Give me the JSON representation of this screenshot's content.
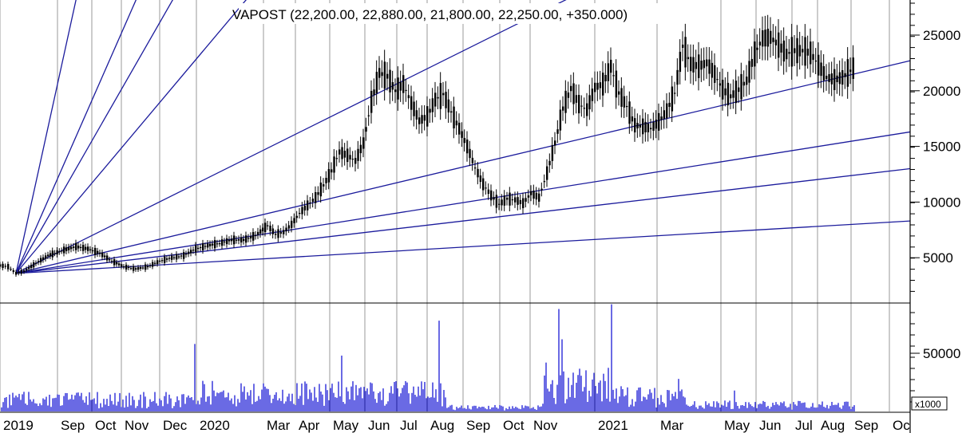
{
  "chart_data": {
    "type": "line",
    "title": "VAPOST (22,200.00, 22,880.00, 21,800.00, 22,250.00, +350.000)",
    "price_axis": {
      "ylim": [
        0,
        28000
      ],
      "ticks": [
        5000,
        10000,
        15000,
        20000,
        25000
      ]
    },
    "volume_axis": {
      "ylim": [
        0,
        90000
      ],
      "ticks": [
        50000
      ],
      "multiplier_label": "x1000"
    },
    "x_labels": [
      "2019",
      "Sep",
      "Oct",
      "Nov",
      "Dec",
      "2020",
      "Mar",
      "Apr",
      "May",
      "Jun",
      "Jul",
      "Aug",
      "Sep",
      "Oct",
      "Nov",
      "2021",
      "Mar",
      "May",
      "Jun",
      "Jul",
      "Aug",
      "Sep",
      "Oc"
    ],
    "grid": "vertical-months",
    "price_series": {
      "name": "",
      "points": [
        [
          0,
          4300
        ],
        [
          10,
          4200
        ],
        [
          20,
          3600
        ],
        [
          30,
          3800
        ],
        [
          45,
          4500
        ],
        [
          60,
          5200
        ],
        [
          80,
          5700
        ],
        [
          95,
          6000
        ],
        [
          110,
          5800
        ],
        [
          125,
          5400
        ],
        [
          140,
          4700
        ],
        [
          155,
          4200
        ],
        [
          170,
          4000
        ],
        [
          185,
          4200
        ],
        [
          200,
          4700
        ],
        [
          215,
          5000
        ],
        [
          230,
          5200
        ],
        [
          245,
          5800
        ],
        [
          260,
          6100
        ],
        [
          275,
          6300
        ],
        [
          290,
          6600
        ],
        [
          305,
          6600
        ],
        [
          320,
          7000
        ],
        [
          335,
          7900
        ],
        [
          345,
          7100
        ],
        [
          355,
          7300
        ],
        [
          365,
          8000
        ],
        [
          375,
          9000
        ],
        [
          385,
          9700
        ],
        [
          395,
          10400
        ],
        [
          405,
          11500
        ],
        [
          415,
          12800
        ],
        [
          425,
          14500
        ],
        [
          435,
          14200
        ],
        [
          445,
          13700
        ],
        [
          455,
          15300
        ],
        [
          465,
          19000
        ],
        [
          475,
          21600
        ],
        [
          485,
          21300
        ],
        [
          495,
          20000
        ],
        [
          505,
          20600
        ],
        [
          515,
          18900
        ],
        [
          525,
          17300
        ],
        [
          535,
          17700
        ],
        [
          545,
          19200
        ],
        [
          555,
          19700
        ],
        [
          565,
          18100
        ],
        [
          575,
          16600
        ],
        [
          585,
          15000
        ],
        [
          595,
          13100
        ],
        [
          605,
          11600
        ],
        [
          615,
          10600
        ],
        [
          625,
          9800
        ],
        [
          635,
          10300
        ],
        [
          645,
          10200
        ],
        [
          655,
          9900
        ],
        [
          665,
          10800
        ],
        [
          675,
          10400
        ],
        [
          685,
          12600
        ],
        [
          695,
          15300
        ],
        [
          705,
          18400
        ],
        [
          715,
          20200
        ],
        [
          725,
          18800
        ],
        [
          735,
          18300
        ],
        [
          745,
          20300
        ],
        [
          755,
          20600
        ],
        [
          765,
          22200
        ],
        [
          775,
          19800
        ],
        [
          785,
          18600
        ],
        [
          795,
          16900
        ],
        [
          805,
          16800
        ],
        [
          815,
          16600
        ],
        [
          825,
          17200
        ],
        [
          835,
          18200
        ],
        [
          845,
          19800
        ],
        [
          855,
          24000
        ],
        [
          865,
          22400
        ],
        [
          875,
          22200
        ],
        [
          885,
          22500
        ],
        [
          895,
          21500
        ],
        [
          905,
          20100
        ],
        [
          915,
          19500
        ],
        [
          925,
          20100
        ],
        [
          935,
          20900
        ],
        [
          945,
          23300
        ],
        [
          955,
          24700
        ],
        [
          965,
          24800
        ],
        [
          975,
          24100
        ],
        [
          985,
          23300
        ],
        [
          995,
          23600
        ],
        [
          1005,
          23600
        ],
        [
          1015,
          23400
        ],
        [
          1025,
          22300
        ],
        [
          1035,
          21200
        ],
        [
          1045,
          21000
        ],
        [
          1055,
          21200
        ],
        [
          1065,
          21800
        ],
        [
          1072,
          22250
        ]
      ]
    },
    "fan_lines": [
      {
        "angle_index": 1,
        "end": [
          110,
          33000
        ]
      },
      {
        "angle_index": 2,
        "end": [
          200,
          33000
        ]
      },
      {
        "angle_index": 3,
        "end": [
          255,
          33000
        ]
      },
      {
        "angle_index": 4,
        "end": [
          365,
          33000
        ]
      },
      {
        "angle_index": 5,
        "end": [
          760,
          30000
        ]
      },
      {
        "angle_index": 6,
        "end": [
          1140,
          22700
        ]
      },
      {
        "angle_index": 7,
        "end": [
          1140,
          16300
        ]
      },
      {
        "angle_index": 8,
        "end": [
          1140,
          13000
        ]
      },
      {
        "angle_index": 9,
        "end": [
          1140,
          8300
        ]
      }
    ],
    "fan_origin": [
      20,
      3600
    ],
    "volume_series": {
      "name": "",
      "spikes": [
        [
          245,
          58000
        ],
        [
          550,
          78000
        ],
        [
          700,
          88000
        ],
        [
          767,
          92000
        ],
        [
          428,
          48000
        ],
        [
          705,
          62000
        ],
        [
          685,
          42000
        ],
        [
          850,
          28000
        ],
        [
          920,
          18000
        ]
      ]
    },
    "colors": {
      "fan": "#1b1b9c",
      "price": "#000000",
      "volume": "#1a1ad6",
      "grid": "#999999"
    }
  }
}
